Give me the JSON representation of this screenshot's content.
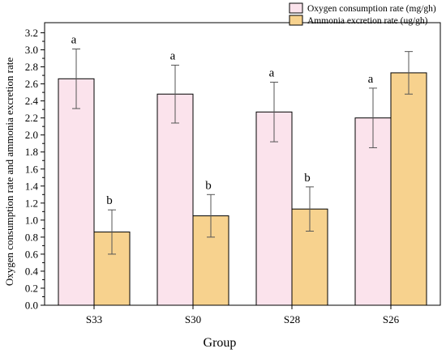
{
  "chart_data": {
    "type": "bar",
    "xlabel": "Group",
    "ylabel": "Oxygen consumption rate and ammonia excretion rate",
    "categories": [
      "S33",
      "S30",
      "S28",
      "S26"
    ],
    "ylim": [
      0.0,
      3.3
    ],
    "yticks": [
      "0.0",
      "0.2",
      "0.4",
      "0.6",
      "0.8",
      "1.0",
      "1.2",
      "1.4",
      "1.6",
      "1.8",
      "2.0",
      "2.2",
      "2.4",
      "2.6",
      "2.8",
      "3.0",
      "3.2"
    ],
    "legend_position": "top-right",
    "series": [
      {
        "name": "Oxygen consumption rate (mg/gh)",
        "color": "#fbe3ec",
        "values": [
          2.66,
          2.48,
          2.27,
          2.2
        ],
        "errors": [
          0.35,
          0.34,
          0.35,
          0.35
        ],
        "letters": [
          "a",
          "a",
          "a",
          "a"
        ]
      },
      {
        "name": "Ammonia excretion rate (ug/gh)",
        "color": "#f7d28e",
        "values": [
          0.86,
          1.05,
          1.13,
          2.73
        ],
        "errors": [
          0.26,
          0.25,
          0.26,
          0.25
        ],
        "letters": [
          "b",
          "b",
          "b",
          ""
        ]
      }
    ]
  }
}
